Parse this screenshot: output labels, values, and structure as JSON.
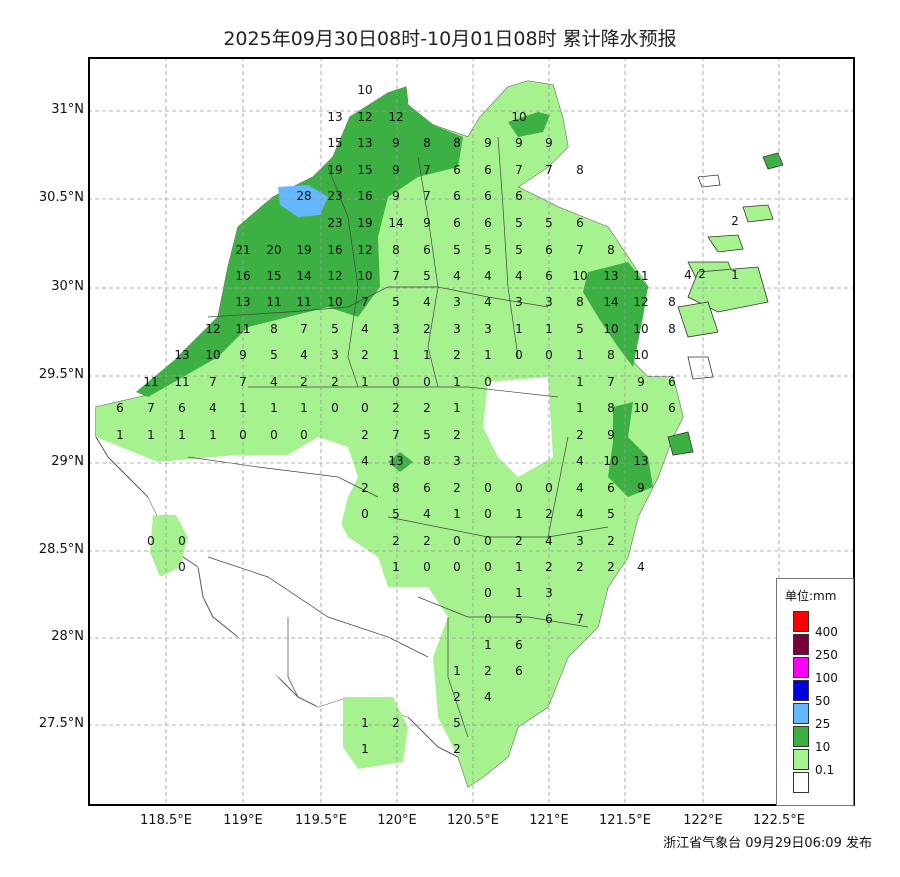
{
  "title": "2025年09月30日08时-10月01日08时 累计降水预报",
  "footer": "浙江省气象台 09月29日06:09 发布",
  "axes": {
    "lat_labels": [
      "31°N",
      "30.5°N",
      "30°N",
      "29.5°N",
      "29°N",
      "28.5°N",
      "28°N",
      "27.5°N"
    ],
    "lon_labels": [
      "118.5°E",
      "119°E",
      "119.5°E",
      "120°E",
      "120.5°E",
      "121°E",
      "121.5°E",
      "122°E",
      "122.5°E"
    ],
    "grid": true
  },
  "legend": {
    "title": "单位:mm",
    "items": [
      {
        "label": "400",
        "color": "#ff0000"
      },
      {
        "label": "250",
        "color": "#7a0038"
      },
      {
        "label": "100",
        "color": "#ff00ff"
      },
      {
        "label": "50",
        "color": "#0000e0"
      },
      {
        "label": "25",
        "color": "#63b8ff"
      },
      {
        "label": "10",
        "color": "#3cb043"
      },
      {
        "label": "0.1",
        "color": "#a6f28f"
      },
      {
        "label": "",
        "color": "#ffffff"
      }
    ]
  },
  "colors": {
    "light_green": "#a6f28f",
    "green": "#3cb043",
    "blue": "#63b8ff",
    "grid": "#9a9a9a"
  },
  "station_values": [
    "10",
    "13",
    "12",
    "12",
    "10",
    "15",
    "13",
    "9",
    "8",
    "8",
    "9",
    "9",
    "9",
    "19",
    "15",
    "9",
    "7",
    "6",
    "6",
    "7",
    "7",
    "8",
    "28",
    "23",
    "16",
    "9",
    "7",
    "6",
    "6",
    "6",
    "23",
    "19",
    "14",
    "9",
    "6",
    "6",
    "5",
    "5",
    "6",
    "2",
    "21",
    "20",
    "19",
    "16",
    "12",
    "8",
    "6",
    "5",
    "5",
    "5",
    "6",
    "7",
    "8",
    "16",
    "15",
    "14",
    "12",
    "10",
    "7",
    "5",
    "4",
    "4",
    "4",
    "6",
    "10",
    "13",
    "11",
    "2",
    "4",
    "1",
    "13",
    "11",
    "11",
    "10",
    "7",
    "5",
    "4",
    "3",
    "4",
    "3",
    "3",
    "8",
    "14",
    "12",
    "8",
    "12",
    "11",
    "8",
    "7",
    "5",
    "4",
    "3",
    "2",
    "3",
    "3",
    "1",
    "1",
    "5",
    "10",
    "10",
    "8",
    "13",
    "10",
    "9",
    "5",
    "4",
    "3",
    "2",
    "1",
    "1",
    "2",
    "1",
    "0",
    "0",
    "1",
    "8",
    "10",
    "11",
    "11",
    "7",
    "7",
    "4",
    "2",
    "2",
    "1",
    "0",
    "0",
    "1",
    "0",
    "1",
    "7",
    "9",
    "6",
    "6",
    "7",
    "6",
    "4",
    "1",
    "1",
    "1",
    "0",
    "0",
    "2",
    "2",
    "1",
    "1",
    "8",
    "10",
    "6",
    "1",
    "1",
    "1",
    "1",
    "0",
    "0",
    "0",
    "2",
    "7",
    "5",
    "2",
    "2",
    "9",
    "4",
    "13",
    "8",
    "3",
    "4",
    "10",
    "13",
    "2",
    "8",
    "6",
    "2",
    "0",
    "0",
    "0",
    "4",
    "6",
    "9",
    "0",
    "5",
    "4",
    "1",
    "0",
    "1",
    "2",
    "4",
    "5",
    "0",
    "0",
    "2",
    "2",
    "0",
    "0",
    "2",
    "4",
    "3",
    "2",
    "0",
    "1",
    "0",
    "0",
    "0",
    "1",
    "2",
    "2",
    "2",
    "4",
    "0",
    "1",
    "3",
    "0",
    "5",
    "6",
    "7",
    "1",
    "6",
    "1",
    "2",
    "6",
    "2",
    "4",
    "1",
    "2",
    "5",
    "1",
    "2"
  ]
}
